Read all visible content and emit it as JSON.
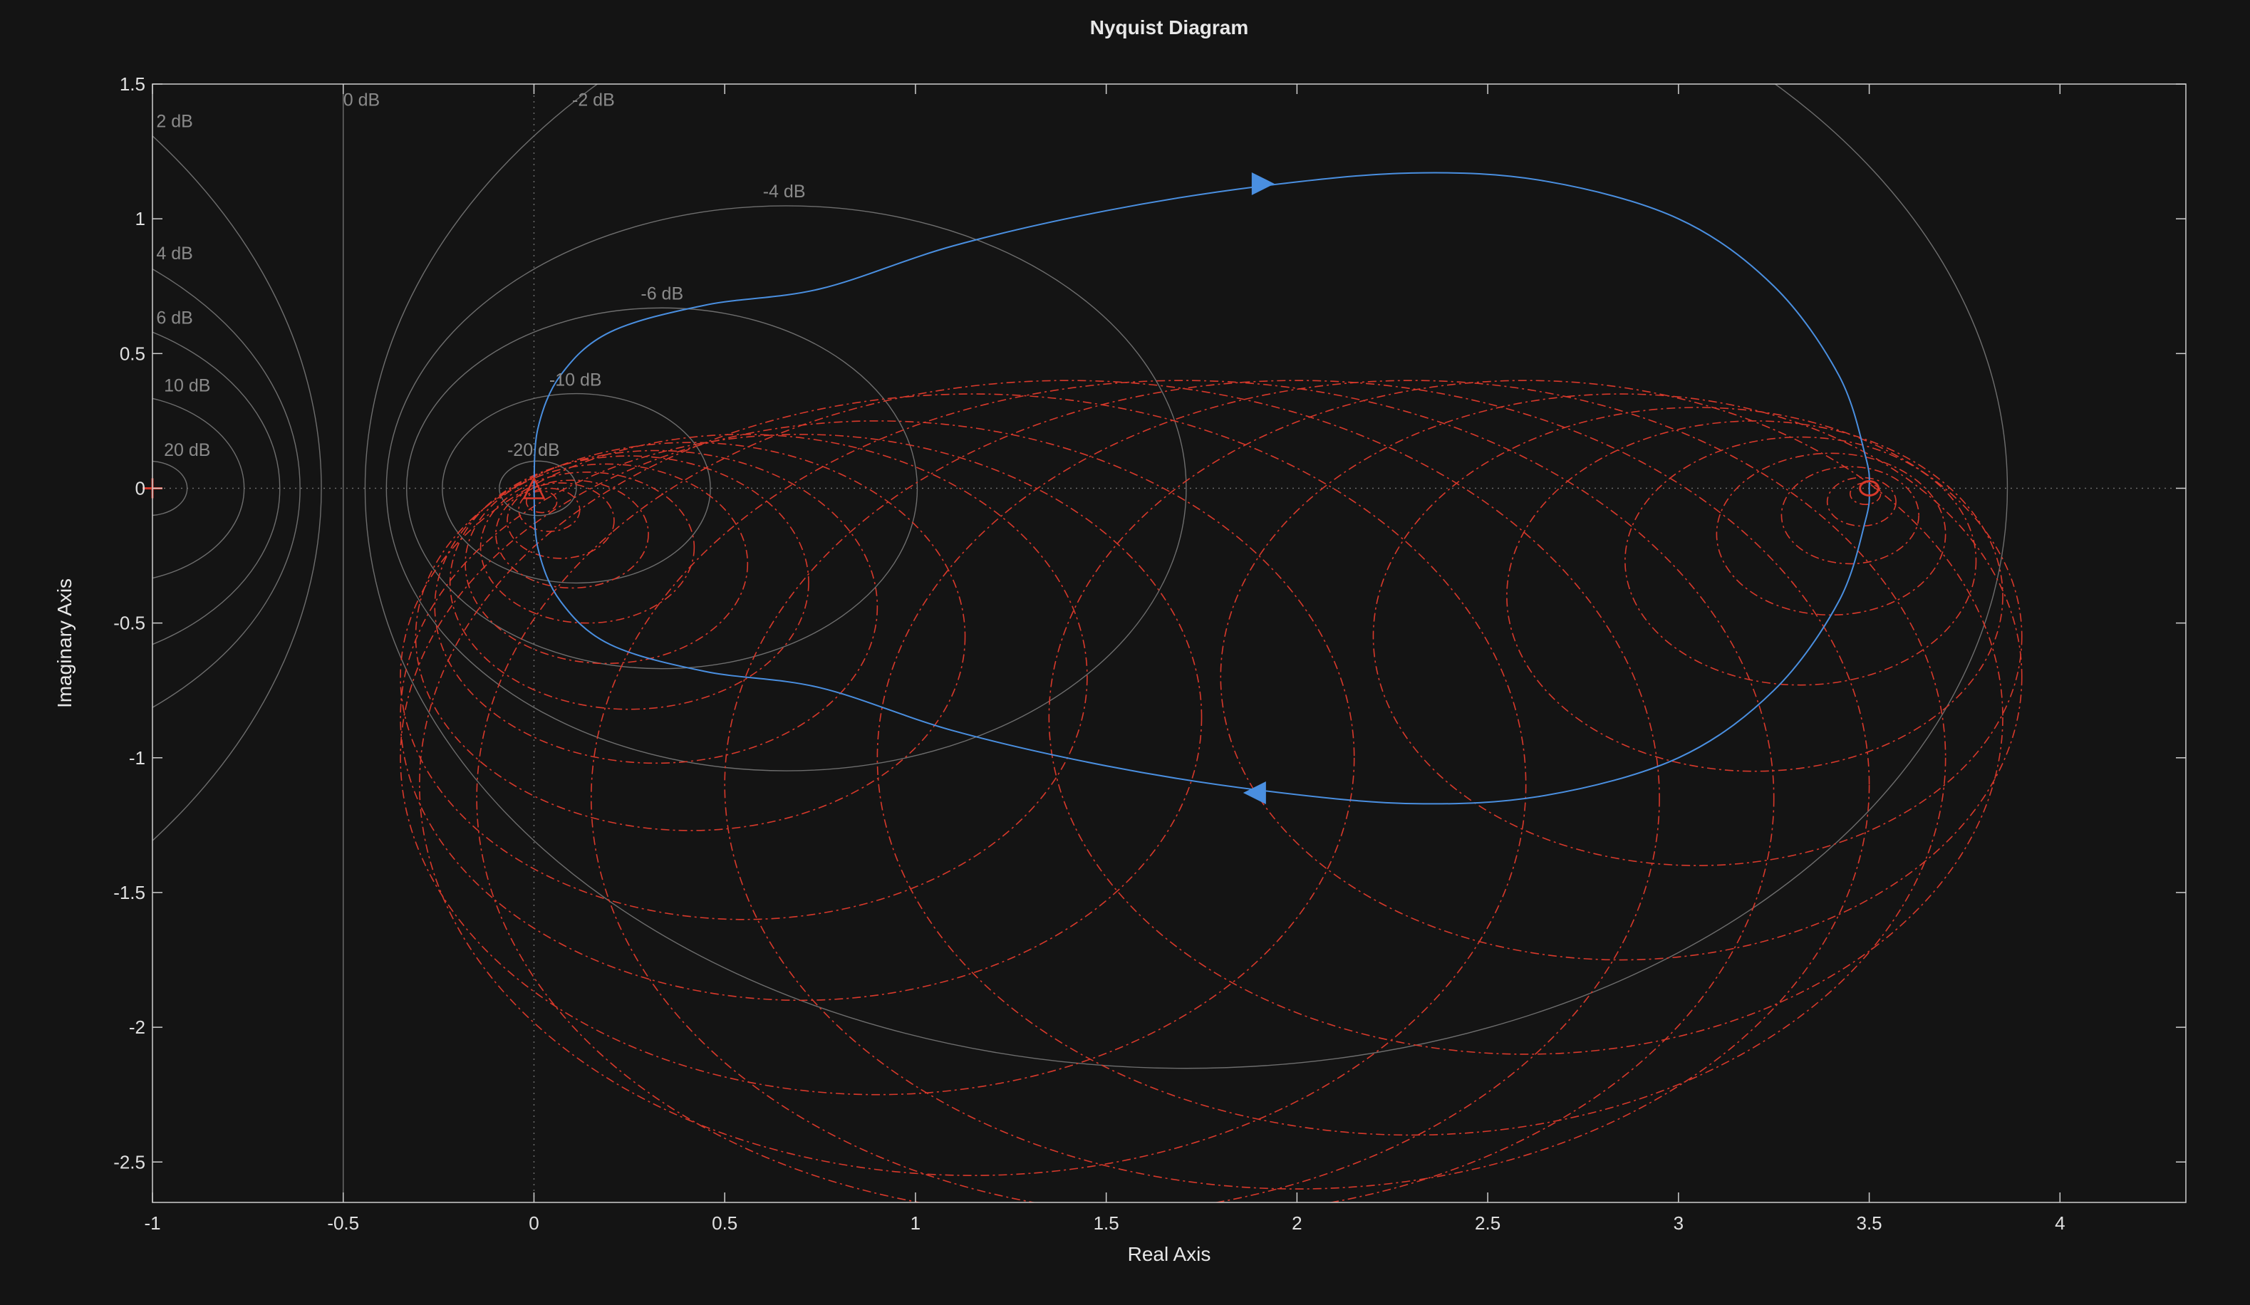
{
  "colors": {
    "background": "#141414",
    "axes": "#cfcfcf",
    "grid": "#6e6e6e",
    "nyquist": "#4a8fe0",
    "dashed": "#d8392b"
  },
  "chart_data": {
    "type": "line",
    "title": "Nyquist Diagram",
    "xlabel": "Real Axis",
    "ylabel": "Imaginary Axis",
    "xlim": [
      -1,
      4.33
    ],
    "ylim": [
      -2.65,
      1.5
    ],
    "xticks": [
      -1,
      -0.5,
      0,
      0.5,
      1,
      1.5,
      2,
      2.5,
      3,
      3.5,
      4
    ],
    "xtick_labels": [
      "-1",
      "-0.5",
      "0",
      "0.5",
      "1",
      "1.5",
      "2",
      "2.5",
      "3",
      "3.5",
      "4"
    ],
    "yticks": [
      1.5,
      1,
      0.5,
      0,
      -0.5,
      -1,
      -1.5,
      -2,
      -2.5
    ],
    "ytick_labels": [
      "1.5",
      "1",
      "0.5",
      "0",
      "-0.5",
      "-1",
      "-1.5",
      "-2",
      "-2.5"
    ],
    "grid": true,
    "mcircle_labels": [
      {
        "text": "0 dB",
        "x": -0.5,
        "y": 1.42
      },
      {
        "text": "2 dB",
        "x": -0.99,
        "y": 1.34
      },
      {
        "text": "-2 dB",
        "x": 0.1,
        "y": 1.42
      },
      {
        "text": "4 dB",
        "x": -0.99,
        "y": 0.85
      },
      {
        "text": "-4 dB",
        "x": 0.6,
        "y": 1.08
      },
      {
        "text": "6 dB",
        "x": -0.99,
        "y": 0.61
      },
      {
        "text": "-6 dB",
        "x": 0.28,
        "y": 0.7
      },
      {
        "text": "10 dB",
        "x": -0.97,
        "y": 0.36
      },
      {
        "text": "-10 dB",
        "x": 0.04,
        "y": 0.38
      },
      {
        "text": "20 dB",
        "x": -0.97,
        "y": 0.12
      },
      {
        "text": "-20 dB",
        "x": -0.07,
        "y": 0.12
      }
    ],
    "critical_point": {
      "x": -1,
      "y": 0
    },
    "series": [
      {
        "values": [
          [
            0,
            0
          ],
          [
            0.01,
            0.22
          ],
          [
            0.07,
            0.42
          ],
          [
            0.2,
            0.58
          ],
          [
            0.45,
            0.68
          ],
          [
            0.75,
            0.74
          ],
          [
            1.1,
            0.9
          ],
          [
            1.5,
            1.03
          ],
          [
            1.9,
            1.12
          ],
          [
            2.3,
            1.17
          ],
          [
            2.65,
            1.14
          ],
          [
            3.0,
            1.0
          ],
          [
            3.25,
            0.75
          ],
          [
            3.42,
            0.42
          ],
          [
            3.49,
            0.12
          ],
          [
            3.5,
            0
          ],
          [
            3.49,
            -0.12
          ],
          [
            3.42,
            -0.42
          ],
          [
            3.25,
            -0.75
          ],
          [
            3.0,
            -1.0
          ],
          [
            2.65,
            -1.14
          ],
          [
            2.3,
            -1.17
          ],
          [
            1.9,
            -1.12
          ],
          [
            1.5,
            -1.03
          ],
          [
            1.1,
            -0.9
          ],
          [
            0.75,
            -0.74
          ],
          [
            0.45,
            -0.68
          ],
          [
            0.2,
            -0.58
          ],
          [
            0.07,
            -0.42
          ],
          [
            0.01,
            -0.22
          ],
          [
            0,
            0
          ]
        ],
        "arrows": [
          {
            "x": 1.9,
            "y": 1.13
          },
          {
            "x": 1.9,
            "y": -1.13
          }
        ]
      }
    ],
    "dashed_circles": [
      {
        "cx": 0.02,
        "cy": -0.05,
        "r": 0.04
      },
      {
        "cx": 0.04,
        "cy": -0.08,
        "r": 0.08
      },
      {
        "cx": 0.07,
        "cy": -0.12,
        "r": 0.14
      },
      {
        "cx": 0.1,
        "cy": -0.17,
        "r": 0.2
      },
      {
        "cx": 0.14,
        "cy": -0.22,
        "r": 0.28
      },
      {
        "cx": 0.19,
        "cy": -0.28,
        "r": 0.37
      },
      {
        "cx": 0.25,
        "cy": -0.35,
        "r": 0.47
      },
      {
        "cx": 0.32,
        "cy": -0.44,
        "r": 0.58
      },
      {
        "cx": 0.41,
        "cy": -0.55,
        "r": 0.72
      },
      {
        "cx": 0.55,
        "cy": -0.7,
        "r": 0.9
      },
      {
        "cx": 0.7,
        "cy": -0.85,
        "r": 1.05
      },
      {
        "cx": 0.9,
        "cy": -1.0,
        "r": 1.25
      },
      {
        "cx": 1.15,
        "cy": -1.1,
        "r": 1.45
      },
      {
        "cx": 1.4,
        "cy": -1.15,
        "r": 1.55
      },
      {
        "cx": 1.7,
        "cy": -1.15,
        "r": 1.55
      },
      {
        "cx": 2.0,
        "cy": -1.1,
        "r": 1.5
      },
      {
        "cx": 2.3,
        "cy": -1.0,
        "r": 1.4
      },
      {
        "cx": 2.6,
        "cy": -0.85,
        "r": 1.25
      },
      {
        "cx": 2.85,
        "cy": -0.7,
        "r": 1.05
      },
      {
        "cx": 3.05,
        "cy": -0.55,
        "r": 0.85
      },
      {
        "cx": 3.2,
        "cy": -0.4,
        "r": 0.65
      },
      {
        "cx": 3.32,
        "cy": -0.27,
        "r": 0.46
      },
      {
        "cx": 3.4,
        "cy": -0.17,
        "r": 0.3
      },
      {
        "cx": 3.45,
        "cy": -0.1,
        "r": 0.18
      },
      {
        "cx": 3.48,
        "cy": -0.05,
        "r": 0.09
      },
      {
        "cx": 3.49,
        "cy": -0.02,
        "r": 0.04
      }
    ],
    "dashed_markers": [
      {
        "x": 0,
        "y": 0,
        "shape": "triangle"
      },
      {
        "x": 3.5,
        "y": 0,
        "shape": "ring"
      }
    ]
  }
}
